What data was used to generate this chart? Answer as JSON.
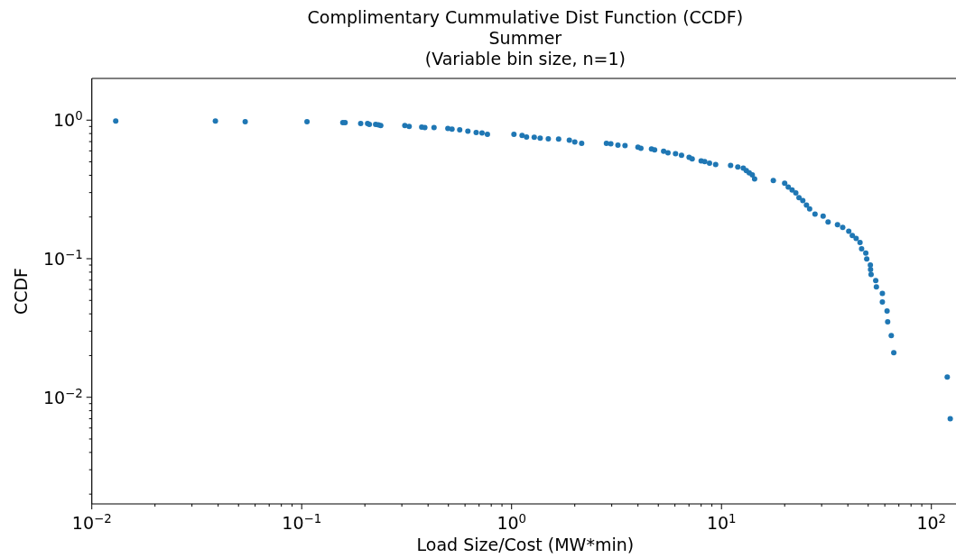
{
  "chart_data": {
    "type": "scatter",
    "title": "Complimentary Cummulative Dist Function (CCDF)\nSummer\n(Variable bin size, n=1)",
    "xlabel": "Load Size/Cost (MW*min)",
    "ylabel": "CCDF",
    "log": "xy",
    "marker": "circle",
    "grid": false,
    "xlim": [
      0.01,
      131
    ],
    "ylim": [
      0.0017,
      2.0
    ],
    "xticks": [
      {
        "value": 0.01,
        "label": "10$^{−2}$"
      },
      {
        "value": 0.02,
        "label": null
      },
      {
        "value": 0.03,
        "label": null
      },
      {
        "value": 0.04,
        "label": null
      },
      {
        "value": 0.05,
        "label": null
      },
      {
        "value": 0.06,
        "label": null
      },
      {
        "value": 0.07,
        "label": null
      },
      {
        "value": 0.08,
        "label": null
      },
      {
        "value": 0.09,
        "label": null
      },
      {
        "value": 0.1,
        "label": "10$^{−1}$"
      },
      {
        "value": 0.2,
        "label": null
      },
      {
        "value": 0.3,
        "label": null
      },
      {
        "value": 0.4,
        "label": null
      },
      {
        "value": 0.5,
        "label": null
      },
      {
        "value": 0.6,
        "label": null
      },
      {
        "value": 0.7,
        "label": null
      },
      {
        "value": 0.8,
        "label": null
      },
      {
        "value": 0.9,
        "label": null
      },
      {
        "value": 1,
        "label": "10$^{0}$"
      },
      {
        "value": 2,
        "label": null
      },
      {
        "value": 3,
        "label": null
      },
      {
        "value": 4,
        "label": null
      },
      {
        "value": 5,
        "label": null
      },
      {
        "value": 6,
        "label": null
      },
      {
        "value": 7,
        "label": null
      },
      {
        "value": 8,
        "label": null
      },
      {
        "value": 9,
        "label": null
      },
      {
        "value": 10,
        "label": "10$^{1}$"
      },
      {
        "value": 20,
        "label": null
      },
      {
        "value": 30,
        "label": null
      },
      {
        "value": 40,
        "label": null
      },
      {
        "value": 50,
        "label": null
      },
      {
        "value": 60,
        "label": null
      },
      {
        "value": 70,
        "label": null
      },
      {
        "value": 80,
        "label": null
      },
      {
        "value": 90,
        "label": null
      },
      {
        "value": 100,
        "label": "10$^{2}$"
      }
    ],
    "yticks": [
      {
        "value": 0.002,
        "label": null
      },
      {
        "value": 0.003,
        "label": null
      },
      {
        "value": 0.004,
        "label": null
      },
      {
        "value": 0.005,
        "label": null
      },
      {
        "value": 0.006,
        "label": null
      },
      {
        "value": 0.007,
        "label": null
      },
      {
        "value": 0.008,
        "label": null
      },
      {
        "value": 0.009,
        "label": null
      },
      {
        "value": 0.01,
        "label": "10$^{−2}$"
      },
      {
        "value": 0.02,
        "label": null
      },
      {
        "value": 0.03,
        "label": null
      },
      {
        "value": 0.04,
        "label": null
      },
      {
        "value": 0.05,
        "label": null
      },
      {
        "value": 0.06,
        "label": null
      },
      {
        "value": 0.07,
        "label": null
      },
      {
        "value": 0.08,
        "label": null
      },
      {
        "value": 0.09,
        "label": null
      },
      {
        "value": 0.1,
        "label": "10$^{−1}$"
      },
      {
        "value": 0.2,
        "label": null
      },
      {
        "value": 0.3,
        "label": null
      },
      {
        "value": 0.4,
        "label": null
      },
      {
        "value": 0.5,
        "label": null
      },
      {
        "value": 0.6,
        "label": null
      },
      {
        "value": 0.7,
        "label": null
      },
      {
        "value": 0.8,
        "label": null
      },
      {
        "value": 0.9,
        "label": null
      },
      {
        "value": 1,
        "label": "10$^{0}$"
      }
    ],
    "series": [
      {
        "color": "#1f77b4",
        "x": [
          0.013,
          0.0388,
          0.0538,
          0.106,
          0.157,
          0.161,
          0.191,
          0.206,
          0.21,
          0.225,
          0.232,
          0.238,
          0.31,
          0.325,
          0.373,
          0.386,
          0.427,
          0.497,
          0.52,
          0.566,
          0.619,
          0.678,
          0.723,
          0.767,
          1.026,
          1.122,
          1.178,
          1.282,
          1.368,
          1.496,
          1.675,
          1.884,
          2.0,
          2.157,
          2.83,
          2.97,
          3.21,
          3.47,
          4.0,
          4.13,
          4.64,
          4.8,
          5.3,
          5.56,
          6.04,
          6.45,
          7.01,
          7.25,
          8.0,
          8.32,
          8.77,
          9.38,
          11.05,
          11.96,
          12.7,
          13.13,
          13.56,
          14.02,
          14.38,
          17.66,
          20.0,
          20.8,
          21.7,
          22.6,
          23.4,
          24.4,
          25.4,
          26.3,
          27.9,
          30.5,
          32.2,
          35.7,
          37.8,
          40.4,
          42.0,
          43.8,
          45.7,
          46.5,
          48.7,
          49.2,
          51.2,
          51.3,
          51.6,
          54.3,
          54.7,
          58.4,
          58.4,
          61.5,
          61.9,
          64.4,
          66.2,
          119,
          123
        ],
        "values": [
          0.985,
          0.985,
          0.975,
          0.975,
          0.96,
          0.96,
          0.946,
          0.946,
          0.932,
          0.932,
          0.924,
          0.914,
          0.914,
          0.9,
          0.89,
          0.883,
          0.883,
          0.87,
          0.861,
          0.852,
          0.832,
          0.815,
          0.807,
          0.791,
          0.791,
          0.776,
          0.756,
          0.753,
          0.742,
          0.734,
          0.731,
          0.716,
          0.695,
          0.681,
          0.681,
          0.675,
          0.661,
          0.655,
          0.638,
          0.627,
          0.62,
          0.611,
          0.596,
          0.581,
          0.573,
          0.558,
          0.539,
          0.526,
          0.508,
          0.503,
          0.49,
          0.479,
          0.471,
          0.459,
          0.451,
          0.433,
          0.416,
          0.402,
          0.377,
          0.367,
          0.351,
          0.329,
          0.313,
          0.298,
          0.276,
          0.263,
          0.244,
          0.229,
          0.21,
          0.203,
          0.184,
          0.176,
          0.168,
          0.158,
          0.147,
          0.14,
          0.131,
          0.118,
          0.11,
          0.0995,
          0.0901,
          0.0836,
          0.0768,
          0.0696,
          0.0626,
          0.0561,
          0.0488,
          0.042,
          0.0351,
          0.0279,
          0.021,
          0.014,
          0.007
        ]
      }
    ]
  }
}
